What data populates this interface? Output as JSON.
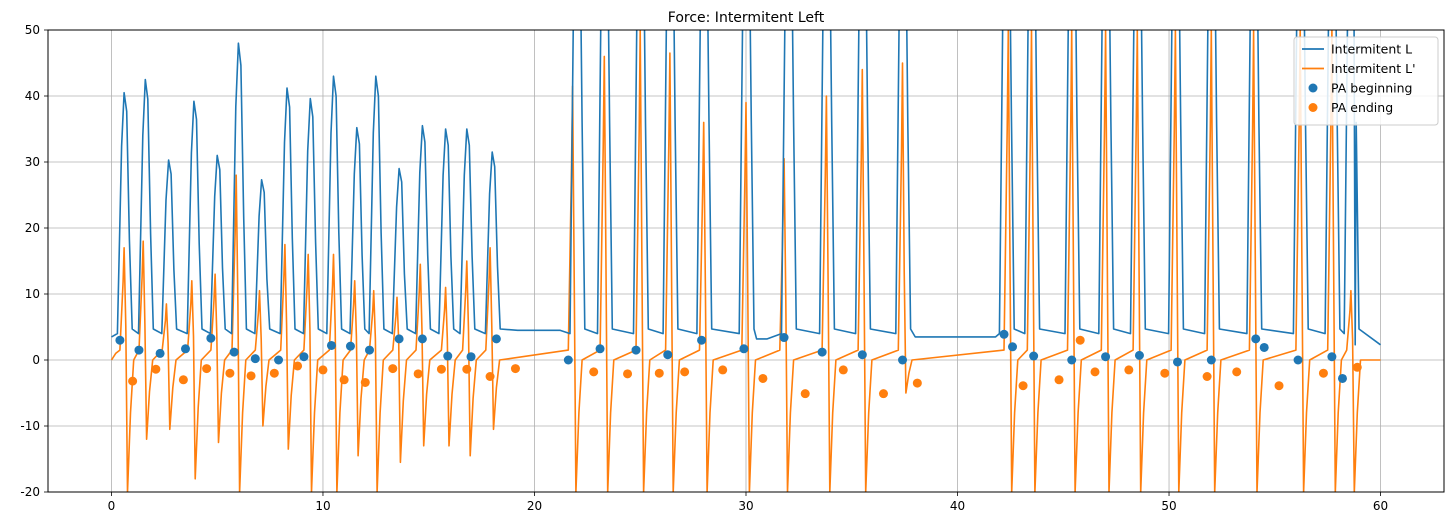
{
  "chart_data": {
    "type": "line",
    "title": "Force: Intermitent Left",
    "xlabel": "",
    "ylabel": "",
    "xlim": [
      -3,
      63
    ],
    "ylim": [
      -20,
      50
    ],
    "xticks": [
      0,
      10,
      20,
      30,
      40,
      50,
      60
    ],
    "yticks": [
      -20,
      -10,
      0,
      10,
      20,
      30,
      40,
      50
    ],
    "grid": true,
    "legend_position": "top-right",
    "colors": {
      "blue": "#1f77b4",
      "orange": "#ff7f0e"
    },
    "series": [
      {
        "name": "Intermitent L",
        "kind": "line",
        "color": "#1f77b4",
        "peaks": [
          [
            0.6,
            40.5
          ],
          [
            1.6,
            42.5
          ],
          [
            2.7,
            30.3
          ],
          [
            3.9,
            39.2
          ],
          [
            5.0,
            31.0
          ],
          [
            6.0,
            48.0
          ],
          [
            7.1,
            27.3
          ],
          [
            8.3,
            41.2
          ],
          [
            9.4,
            39.6
          ],
          [
            10.5,
            43.0
          ],
          [
            11.6,
            35.2
          ],
          [
            12.5,
            43.0
          ],
          [
            13.6,
            29.0
          ],
          [
            14.7,
            35.5
          ],
          [
            15.8,
            35.0
          ],
          [
            16.8,
            35.0
          ],
          [
            18.0,
            31.5
          ],
          [
            22.0,
            80
          ],
          [
            23.3,
            80
          ],
          [
            25.0,
            80
          ],
          [
            26.4,
            80
          ],
          [
            28.0,
            80
          ],
          [
            30.0,
            80
          ],
          [
            32.0,
            80
          ],
          [
            33.8,
            80
          ],
          [
            35.5,
            80
          ],
          [
            37.4,
            80
          ],
          [
            42.3,
            80
          ],
          [
            43.5,
            80
          ],
          [
            45.4,
            80
          ],
          [
            47.0,
            80
          ],
          [
            48.5,
            80
          ],
          [
            50.3,
            80
          ],
          [
            52.0,
            80
          ],
          [
            54.0,
            80
          ],
          [
            56.2,
            80
          ],
          [
            57.7,
            80
          ],
          [
            58.6,
            80
          ]
        ],
        "baseline": 3.5,
        "plateaus": [
          [
            19.2,
            21.2,
            4.5
          ],
          [
            30.5,
            31.0,
            3.2
          ],
          [
            38.0,
            41.8,
            3.5
          ],
          [
            58.8,
            60.0,
            2.3
          ]
        ]
      },
      {
        "name": "Intermitent L'",
        "kind": "line",
        "color": "#ff7f0e",
        "spikes": [
          [
            0.6,
            17.0,
            -20.0
          ],
          [
            1.5,
            18.0,
            -12.0
          ],
          [
            2.6,
            8.5,
            -10.5
          ],
          [
            3.8,
            12.0,
            -18.0
          ],
          [
            4.9,
            13.0,
            -12.5
          ],
          [
            5.9,
            28.0,
            -20.0
          ],
          [
            7.0,
            10.5,
            -10.0
          ],
          [
            8.2,
            17.5,
            -13.5
          ],
          [
            9.3,
            16.0,
            -20.0
          ],
          [
            10.5,
            16.0,
            -20.0
          ],
          [
            11.5,
            12.0,
            -14.5
          ],
          [
            12.4,
            10.5,
            -20.0
          ],
          [
            13.5,
            9.5,
            -15.5
          ],
          [
            14.6,
            14.5,
            -13.0
          ],
          [
            15.8,
            11.0,
            -13.0
          ],
          [
            16.8,
            15.0,
            -14.5
          ],
          [
            17.9,
            17.0,
            -10.5
          ],
          [
            21.8,
            41.5,
            -20.0
          ],
          [
            23.3,
            46.0,
            -20.0
          ],
          [
            25.0,
            50.0,
            -20.0
          ],
          [
            26.4,
            46.5,
            -20.0
          ],
          [
            28.0,
            36.0,
            -20.0
          ],
          [
            30.0,
            39.0,
            -20.0
          ],
          [
            31.8,
            30.5,
            -20.0
          ],
          [
            33.8,
            40.0,
            -20.0
          ],
          [
            35.5,
            44.0,
            -20.0
          ],
          [
            37.4,
            45.0,
            -5.0
          ],
          [
            42.4,
            50.0,
            -20.0
          ],
          [
            43.5,
            50.0,
            -20.0
          ],
          [
            45.4,
            50.0,
            -20.0
          ],
          [
            47.0,
            50.0,
            -20.0
          ],
          [
            48.5,
            50.0,
            -20.0
          ],
          [
            50.3,
            50.0,
            -20.0
          ],
          [
            52.0,
            50.0,
            -20.0
          ],
          [
            54.0,
            50.0,
            -20.0
          ],
          [
            56.2,
            50.0,
            -20.0
          ],
          [
            57.7,
            50.0,
            -20.0
          ],
          [
            58.6,
            10.5,
            -20.0
          ]
        ]
      },
      {
        "name": "PA beginning",
        "kind": "scatter",
        "color": "#1f77b4",
        "points": [
          [
            0.4,
            3.0
          ],
          [
            1.3,
            1.5
          ],
          [
            2.3,
            1.0
          ],
          [
            3.5,
            1.7
          ],
          [
            4.7,
            3.3
          ],
          [
            5.8,
            1.2
          ],
          [
            6.8,
            0.2
          ],
          [
            7.9,
            0.0
          ],
          [
            9.1,
            0.5
          ],
          [
            10.4,
            2.2
          ],
          [
            11.3,
            2.1
          ],
          [
            12.2,
            1.5
          ],
          [
            13.6,
            3.2
          ],
          [
            14.7,
            3.2
          ],
          [
            15.9,
            0.6
          ],
          [
            17.0,
            0.5
          ],
          [
            18.2,
            3.2
          ],
          [
            21.6,
            0.0
          ],
          [
            23.1,
            1.7
          ],
          [
            24.8,
            1.5
          ],
          [
            26.3,
            0.8
          ],
          [
            27.9,
            3.0
          ],
          [
            29.9,
            1.7
          ],
          [
            31.8,
            3.4
          ],
          [
            33.6,
            1.2
          ],
          [
            35.5,
            0.8
          ],
          [
            37.4,
            0.0
          ],
          [
            42.2,
            3.9
          ],
          [
            42.6,
            2.0
          ],
          [
            43.6,
            0.6
          ],
          [
            45.4,
            0.0
          ],
          [
            47.0,
            0.5
          ],
          [
            48.6,
            0.7
          ],
          [
            50.4,
            -0.3
          ],
          [
            52.0,
            0.0
          ],
          [
            54.1,
            3.2
          ],
          [
            54.5,
            1.9
          ],
          [
            56.1,
            0.0
          ],
          [
            57.7,
            0.5
          ],
          [
            58.2,
            -2.8
          ]
        ]
      },
      {
        "name": "PA ending",
        "kind": "scatter",
        "color": "#ff7f0e",
        "points": [
          [
            1.0,
            -3.2
          ],
          [
            2.1,
            -1.4
          ],
          [
            3.4,
            -3.0
          ],
          [
            4.5,
            -1.3
          ],
          [
            5.6,
            -2.0
          ],
          [
            6.6,
            -2.4
          ],
          [
            7.7,
            -2.0
          ],
          [
            8.8,
            -0.9
          ],
          [
            10.0,
            -1.5
          ],
          [
            11.0,
            -3.0
          ],
          [
            12.0,
            -3.4
          ],
          [
            13.3,
            -1.3
          ],
          [
            14.5,
            -2.1
          ],
          [
            15.6,
            -1.4
          ],
          [
            16.8,
            -1.4
          ],
          [
            17.9,
            -2.5
          ],
          [
            19.1,
            -1.3
          ],
          [
            22.8,
            -1.8
          ],
          [
            24.4,
            -2.1
          ],
          [
            25.9,
            -2.0
          ],
          [
            27.1,
            -1.8
          ],
          [
            28.9,
            -1.5
          ],
          [
            30.8,
            -2.8
          ],
          [
            32.8,
            -5.1
          ],
          [
            34.6,
            -1.5
          ],
          [
            36.5,
            -5.1
          ],
          [
            38.1,
            -3.5
          ],
          [
            43.1,
            -3.9
          ],
          [
            44.8,
            -3.0
          ],
          [
            45.8,
            3.0
          ],
          [
            46.5,
            -1.8
          ],
          [
            48.1,
            -1.5
          ],
          [
            49.8,
            -2.0
          ],
          [
            51.8,
            -2.5
          ],
          [
            53.2,
            -1.8
          ],
          [
            55.2,
            -3.9
          ],
          [
            57.3,
            -2.0
          ],
          [
            58.9,
            -1.1
          ]
        ]
      }
    ]
  }
}
